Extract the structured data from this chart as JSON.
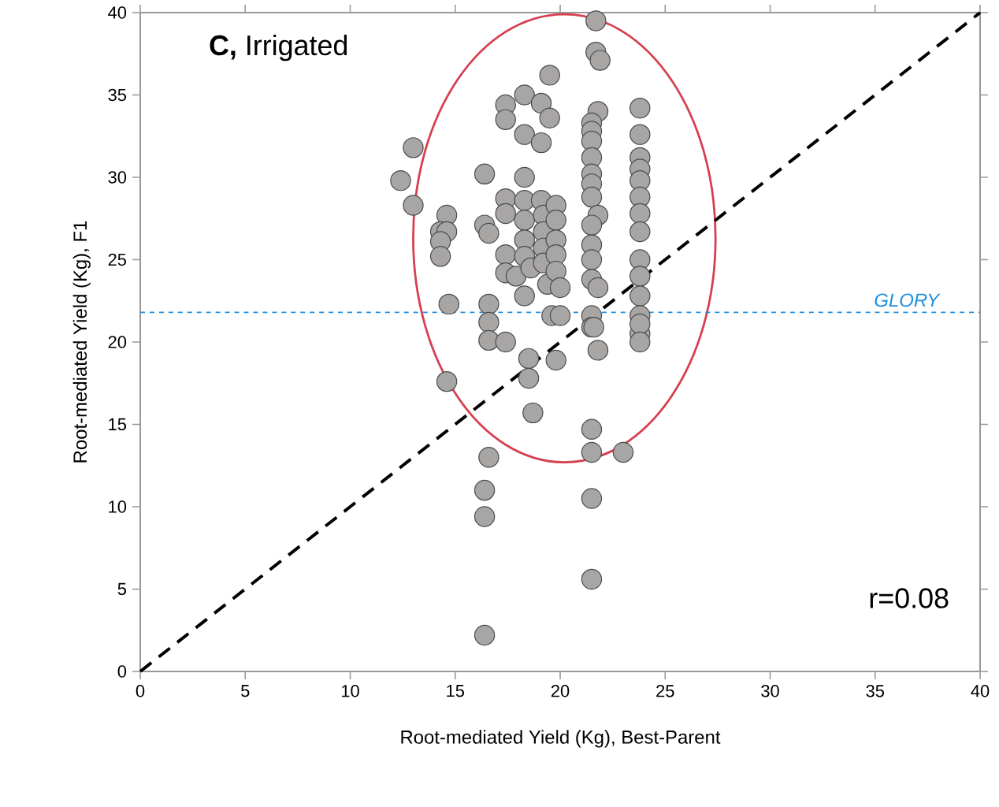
{
  "chart_data": {
    "type": "scatter",
    "xlabel": "Root-mediated Yield (Kg), Best-Parent",
    "ylabel": "Root-mediated Yield (Kg), F1",
    "xlim": [
      0,
      40
    ],
    "ylim": [
      0,
      40
    ],
    "xticks": [
      0,
      5,
      10,
      15,
      20,
      25,
      30,
      35,
      40
    ],
    "yticks": [
      0,
      5,
      10,
      15,
      20,
      25,
      30,
      35,
      40
    ],
    "grid": false,
    "annotations": [
      "**C,** Irrigated",
      "r=0.08"
    ],
    "ref_lines": [
      {
        "axis": "y",
        "value": 21.8,
        "label": "GLORY",
        "color": "#1f8fe0",
        "line_style": "dashed"
      }
    ],
    "series": [
      {
        "color": "#a8a5a5",
        "marker": "circle",
        "x": [
          13.0,
          12.4,
          13.0,
          14.6,
          14.3,
          14.6,
          14.3,
          14.3,
          14.7,
          16.4,
          16.4,
          16.6,
          16.6,
          17.4,
          17.4,
          18.3,
          19.1,
          19.5,
          19.5,
          18.3,
          19.1,
          18.3,
          17.4,
          17.4,
          17.4,
          17.4,
          17.9,
          18.3,
          18.3,
          18.3,
          18.3,
          18.6,
          18.3,
          19.1,
          19.2,
          19.2,
          19.2,
          19.2,
          19.4,
          19.8,
          19.8,
          19.8,
          19.8,
          19.8,
          20.0,
          19.6,
          20.0,
          21.7,
          21.7,
          21.9,
          21.8,
          21.5,
          21.5,
          21.5,
          21.5,
          21.5,
          21.5,
          21.5,
          21.8,
          21.5,
          21.5,
          21.5,
          21.5,
          21.8,
          21.5,
          21.5,
          23.8,
          23.8,
          23.8,
          23.8,
          23.8,
          23.8,
          23.8,
          23.8,
          23.8,
          23.8,
          23.8,
          23.8,
          23.8,
          16.6,
          16.6,
          17.4,
          14.6,
          18.5,
          18.5,
          19.8,
          18.7,
          21.5,
          21.5,
          23.0,
          16.6,
          16.4,
          16.4,
          21.5,
          21.5,
          16.4,
          21.6,
          21.8,
          23.8,
          23.8
        ],
        "values": [
          31.8,
          29.8,
          28.3,
          27.7,
          26.7,
          26.7,
          26.1,
          25.2,
          22.3,
          30.2,
          27.1,
          26.6,
          22.3,
          34.4,
          33.5,
          35.0,
          34.5,
          36.2,
          33.6,
          32.6,
          32.1,
          30.0,
          28.7,
          27.8,
          25.3,
          24.2,
          24.0,
          28.6,
          27.4,
          26.2,
          25.2,
          24.5,
          22.8,
          28.6,
          27.7,
          26.7,
          25.7,
          24.8,
          23.5,
          28.3,
          27.4,
          26.2,
          25.3,
          24.3,
          23.3,
          21.6,
          21.6,
          39.5,
          37.6,
          37.1,
          34.0,
          33.3,
          32.8,
          32.2,
          31.2,
          30.2,
          29.6,
          28.8,
          27.7,
          27.1,
          25.9,
          25.0,
          23.8,
          23.3,
          21.6,
          20.9,
          34.2,
          32.6,
          31.2,
          30.5,
          29.8,
          28.8,
          27.8,
          26.7,
          25.0,
          24.0,
          22.8,
          21.6,
          20.5,
          21.2,
          20.1,
          20.0,
          17.6,
          19.0,
          17.8,
          18.9,
          15.7,
          14.7,
          13.3,
          13.3,
          13.0,
          11.0,
          9.4,
          10.5,
          5.6,
          2.2,
          20.9,
          19.5,
          21.1,
          20.0
        ]
      },
      {
        "type": "line",
        "color": "#000000",
        "line_style": "dashed",
        "marker": "none",
        "x": [
          0,
          40
        ],
        "values": [
          0,
          40
        ]
      }
    ]
  }
}
